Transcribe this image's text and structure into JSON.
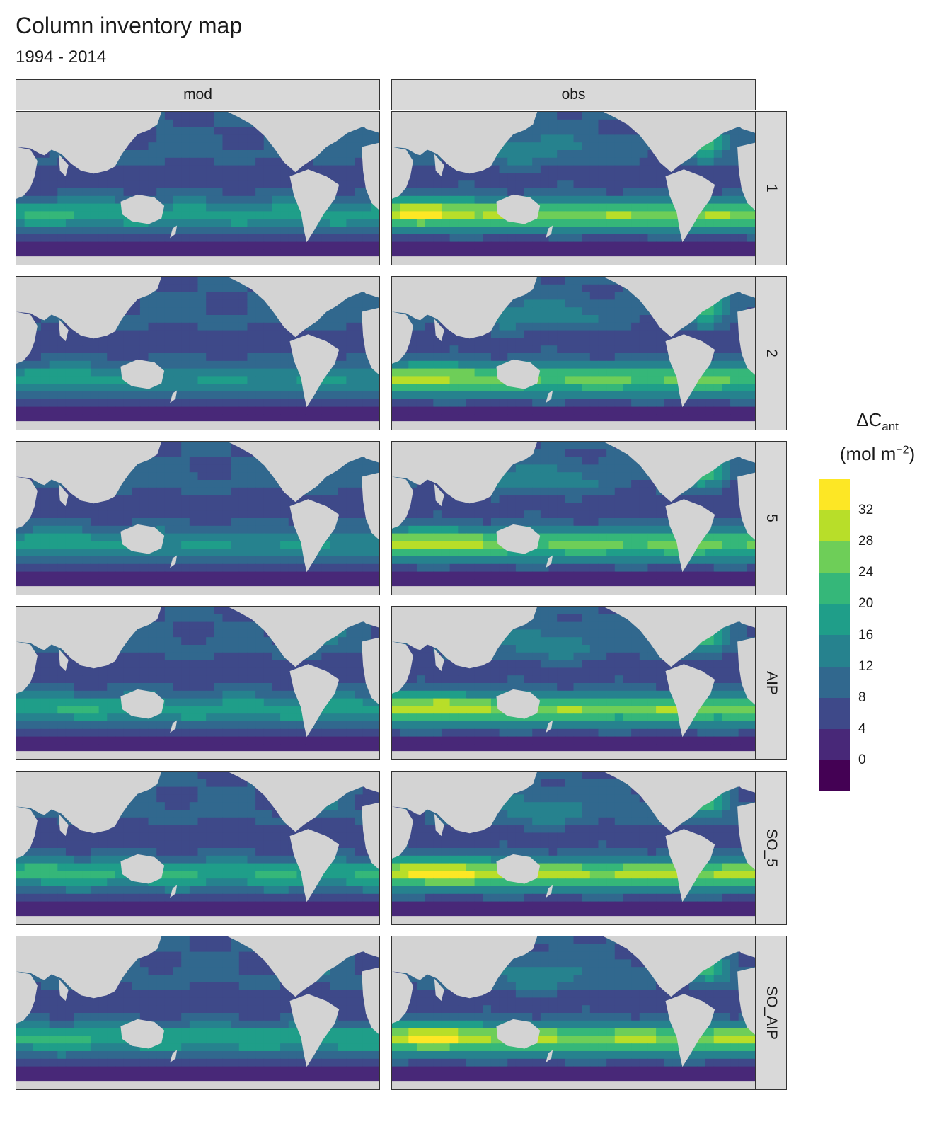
{
  "title": "Column inventory map",
  "subtitle": "1994 - 2014",
  "facets": {
    "columns": [
      "mod",
      "obs"
    ],
    "rows": [
      "1",
      "2",
      "5",
      "AIP",
      "SO_5",
      "SO_AIP"
    ]
  },
  "legend": {
    "title_line1": "ΔC",
    "title_sub": "ant",
    "title_line2": "(mol m",
    "title_sup": "−2",
    "title_close": ")",
    "breaks": [
      "32",
      "28",
      "24",
      "20",
      "16",
      "12",
      "8",
      "4",
      "0"
    ],
    "colors_top_to_bottom": [
      "#fde725",
      "#b8de29",
      "#6ece58",
      "#35b779",
      "#1f9e89",
      "#26828e",
      "#31688e",
      "#3e4989",
      "#482878",
      "#440154"
    ]
  },
  "chart_data": {
    "type": "heatmap",
    "title": "Column inventory map",
    "subtitle": "1994 - 2014",
    "variable": "ΔCant (mol m−2)",
    "color_scale": "viridis, binned in steps of 4",
    "breaks": [
      0,
      4,
      8,
      12,
      16,
      20,
      24,
      28,
      32
    ],
    "facet_columns": [
      "mod",
      "obs"
    ],
    "facet_rows": [
      "1",
      "2",
      "5",
      "AIP",
      "SO_5",
      "SO_AIP"
    ],
    "panels": [
      {
        "row": "1",
        "col": "mod",
        "southern_max_band": 20
      },
      {
        "row": "1",
        "col": "obs",
        "southern_max_band": 28
      },
      {
        "row": "2",
        "col": "mod",
        "southern_max_band": 16
      },
      {
        "row": "2",
        "col": "obs",
        "southern_max_band": 24
      },
      {
        "row": "5",
        "col": "mod",
        "southern_max_band": 16
      },
      {
        "row": "5",
        "col": "obs",
        "southern_max_band": 28
      },
      {
        "row": "AIP",
        "col": "mod",
        "southern_max_band": 20
      },
      {
        "row": "AIP",
        "col": "obs",
        "southern_max_band": 28
      },
      {
        "row": "SO_5",
        "col": "mod",
        "southern_max_band": 20
      },
      {
        "row": "SO_5",
        "col": "obs",
        "southern_max_band": 32
      },
      {
        "row": "SO_AIP",
        "col": "mod",
        "southern_max_band": 20
      },
      {
        "row": "SO_AIP",
        "col": "obs",
        "southern_max_band": 28
      }
    ]
  }
}
